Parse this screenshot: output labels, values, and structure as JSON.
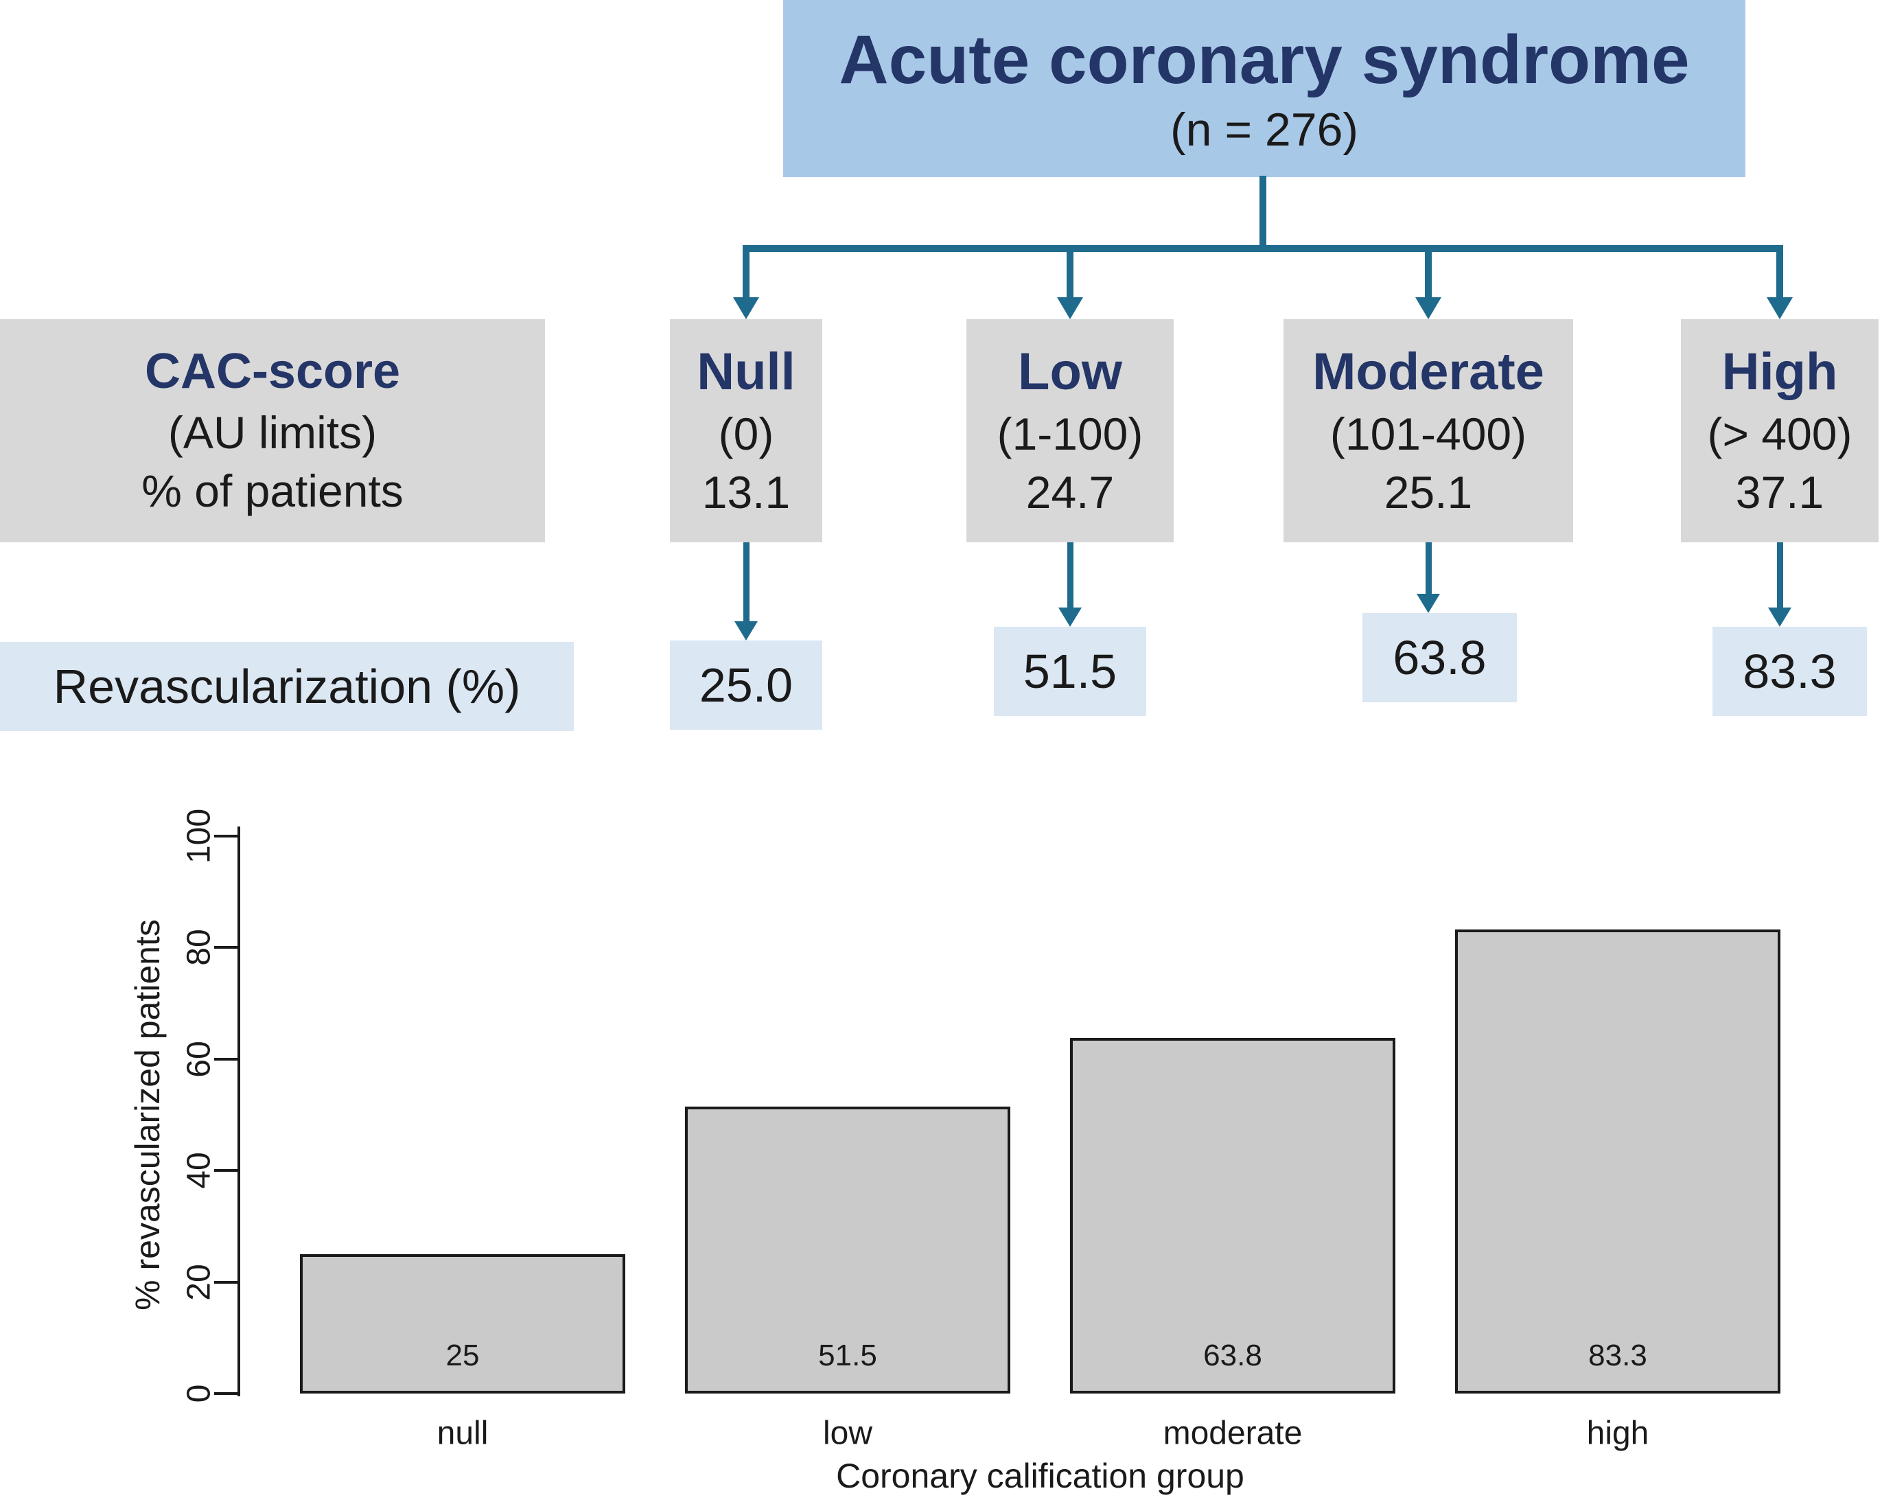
{
  "flowchart": {
    "root": {
      "title": "Acute coronary syndrome",
      "subtitle": "(n = 276)"
    },
    "row_header": {
      "line1": "CAC-score",
      "line2": "(AU limits)",
      "line3": "% of patients"
    },
    "categories": [
      {
        "label": "Null",
        "range": "(0)",
        "pct": "13.1"
      },
      {
        "label": "Low",
        "range": "(1-100)",
        "pct": "24.7"
      },
      {
        "label": "Moderate",
        "range": "(101-400)",
        "pct": "25.1"
      },
      {
        "label": "High",
        "range": "(> 400)",
        "pct": "37.1"
      }
    ],
    "revascularization": {
      "label": "Revascularization (%)",
      "values": [
        "25.0",
        "51.5",
        "63.8",
        "83.3"
      ]
    }
  },
  "chart_data": {
    "type": "bar",
    "categories": [
      "null",
      "low",
      "moderate",
      "high"
    ],
    "values": [
      25,
      51.5,
      63.8,
      83.3
    ],
    "bar_labels": [
      "25",
      "51.5",
      "63.8",
      "83.3"
    ],
    "title": "",
    "xlabel": "Coronary calification group",
    "ylabel": "% revascularized patients",
    "yticks": [
      0,
      20,
      40,
      60,
      80,
      100
    ],
    "ylim": [
      0,
      100
    ],
    "grid": false,
    "legend": null
  },
  "colors": {
    "background": "#ffffff",
    "root_box_bg": "#a8c8e8",
    "navy_text": "#243567",
    "gray_box_bg": "#d8d8d8",
    "value_box_bg": "#dbe7f3",
    "connector_teal": "#1f6b8e",
    "bar_fill": "#cacaca",
    "bar_border": "#1a1a1a",
    "text_black": "#1a1a1a"
  }
}
